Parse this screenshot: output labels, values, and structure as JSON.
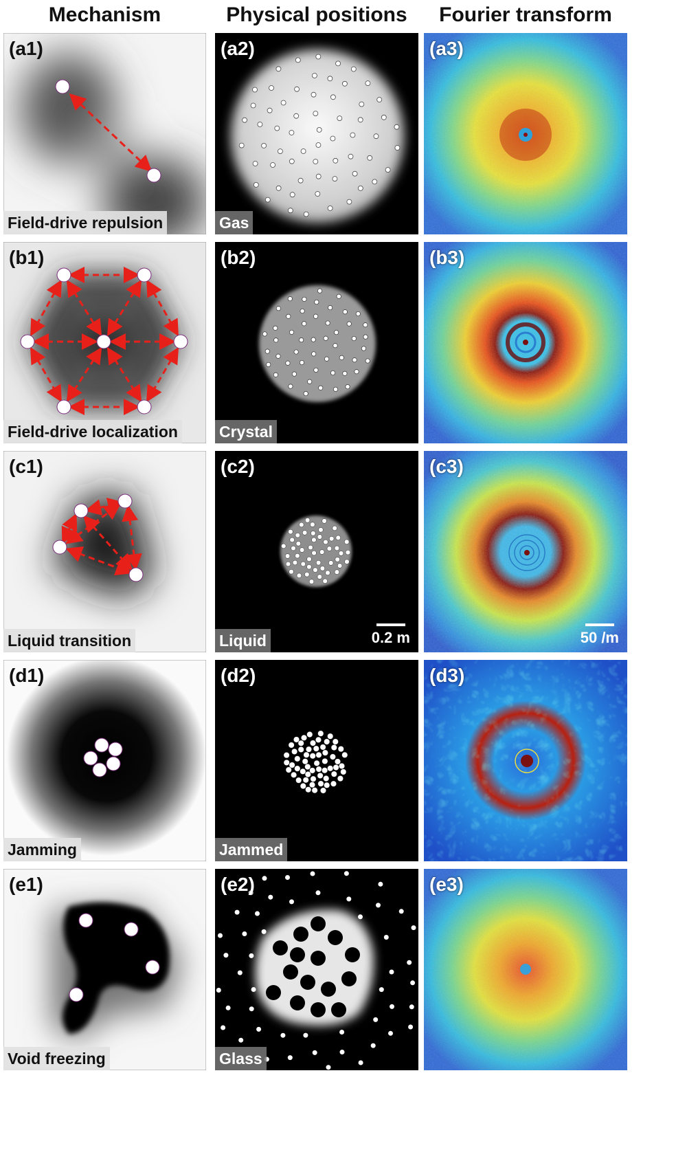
{
  "headers": {
    "mechanism": "Mechanism",
    "physical": "Physical positions",
    "fourier": "Fourier transform"
  },
  "rows": [
    {
      "id": "a",
      "mech_label": "(a1)",
      "phys_label": "(a2)",
      "fourier_label": "(a3)",
      "mechanism": "Field-drive repulsion",
      "phase": "Gas"
    },
    {
      "id": "b",
      "mech_label": "(b1)",
      "phys_label": "(b2)",
      "fourier_label": "(b3)",
      "mechanism": "Field-drive localization",
      "phase": "Crystal"
    },
    {
      "id": "c",
      "mech_label": "(c1)",
      "phys_label": "(c2)",
      "fourier_label": "(c3)",
      "mechanism": "Liquid transition",
      "phase": "Liquid"
    },
    {
      "id": "d",
      "mech_label": "(d1)",
      "phys_label": "(d2)",
      "fourier_label": "(d3)",
      "mechanism": "Jamming",
      "phase": "Jammed"
    },
    {
      "id": "e",
      "mech_label": "(e1)",
      "phys_label": "(e2)",
      "fourier_label": "(e3)",
      "mechanism": "Void freezing",
      "phase": "Glass"
    }
  ],
  "scalebars": {
    "physical": "0.2 m",
    "fourier": "50 /m"
  },
  "colors": {
    "arrow": "#e8201a",
    "particle_fill": "#ffffff",
    "particle_edge": "#7a2a7a"
  }
}
